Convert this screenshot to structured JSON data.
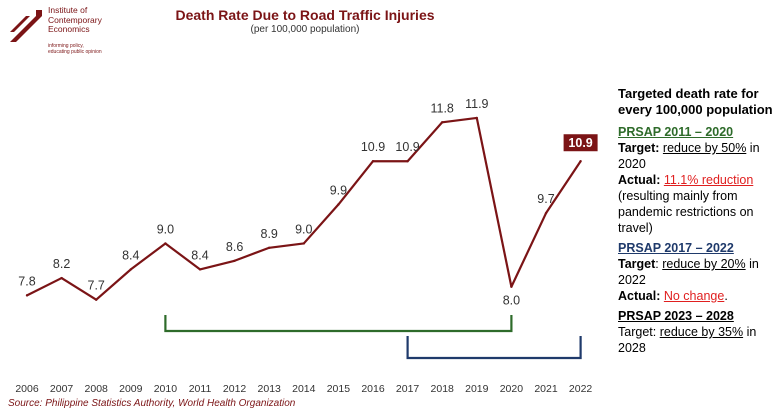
{
  "logo": {
    "lines": [
      "Institute of",
      "Contemporary",
      "Economics"
    ],
    "tagline": [
      "informing policy,",
      "educating public opinion"
    ]
  },
  "colors": {
    "accent": "#7b1416",
    "green": "#2e6b2a",
    "navy": "#1f3a6b",
    "red": "#e01f1f"
  },
  "chart_data": {
    "type": "line",
    "title": "Death Rate Due to Road Traffic Injuries",
    "subtitle": "(per 100,000 population)",
    "categories": [
      "2006",
      "2007",
      "2008",
      "2009",
      "2010",
      "2011",
      "2012",
      "2013",
      "2014",
      "2015",
      "2016",
      "2017",
      "2018",
      "2019",
      "2020",
      "2021",
      "2022"
    ],
    "series": [
      {
        "values": [
          7.8,
          8.2,
          7.7,
          8.4,
          9.0,
          8.4,
          8.6,
          8.9,
          9.0,
          9.9,
          10.9,
          10.9,
          11.8,
          11.9,
          8.0,
          9.7,
          10.9
        ]
      }
    ],
    "value_labels": [
      "7.8",
      "8.2",
      "7.7",
      "8.4",
      "9.0",
      "8.4",
      "8.6",
      "8.9",
      "9.0",
      "9.9",
      "10.9",
      "10.9",
      "11.8",
      "11.9",
      "8.0",
      "9.7",
      "10.9"
    ],
    "ylim": [
      7.0,
      12.5
    ],
    "grid": false,
    "highlight_last": true,
    "brackets": [
      {
        "from": "2010",
        "to": "2020",
        "color": "green"
      },
      {
        "from": "2017",
        "to": "2022",
        "color": "navy"
      }
    ],
    "source": "Source: Philippine Statistics Authority, World Health Organization"
  },
  "panel": {
    "heading": "Targeted death rate for every 100,000 population",
    "s1": {
      "title": "PRSAP 2011 – 2020",
      "target_label": "Target:",
      "target_value": "reduce by 50%",
      "target_year": "in 2020",
      "actual_label": "Actual:",
      "actual_value": "11.1% reduction",
      "actual_note": "(resulting mainly from pandemic restrictions on travel)"
    },
    "s2": {
      "title": "PRSAP 2017 – 2022",
      "target_label": "Target",
      "target_value": "reduce by 20%",
      "target_year": "in 2022",
      "actual_label": "Actual:",
      "actual_value": "No change",
      "actual_end": "."
    },
    "s3": {
      "title": "PRSAP 2023 – 2028",
      "target_label": "Target:",
      "target_value": "reduce by 35%",
      "target_year": "in 2028"
    }
  }
}
